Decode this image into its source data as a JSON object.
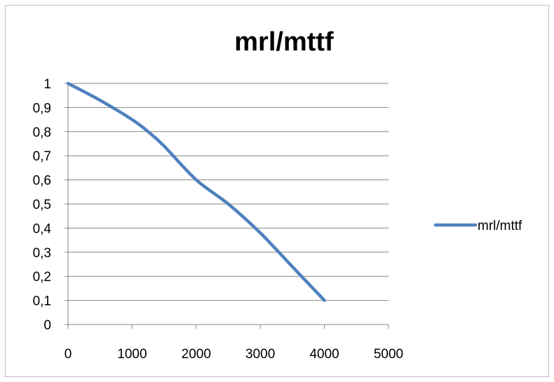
{
  "chart_data": {
    "type": "line",
    "title": "mrl/mttf",
    "xlabel": "",
    "ylabel": "",
    "xlim": [
      0,
      5000
    ],
    "ylim": [
      0,
      1
    ],
    "x_ticks": [
      0,
      1000,
      2000,
      3000,
      4000,
      5000
    ],
    "x_tick_labels": [
      "0",
      "1000",
      "2000",
      "3000",
      "4000",
      "5000"
    ],
    "y_ticks": [
      0,
      0.1,
      0.2,
      0.3,
      0.4,
      0.5,
      0.6,
      0.7,
      0.8,
      0.9,
      1
    ],
    "y_tick_labels": [
      "0",
      "0,1",
      "0,2",
      "0,3",
      "0,4",
      "0,5",
      "0,6",
      "0,7",
      "0,8",
      "0,9",
      "1"
    ],
    "grid": "horizontal",
    "legend_position": "right",
    "series": [
      {
        "name": "mrl/mttf",
        "color": "#4f81bd",
        "x": [
          0,
          500,
          1000,
          1250,
          1500,
          2000,
          2500,
          3000,
          3500,
          4000
        ],
        "y": [
          1,
          0.93,
          0.85,
          0.8,
          0.74,
          0.6,
          0.5,
          0.38,
          0.24,
          0.1
        ]
      }
    ]
  }
}
